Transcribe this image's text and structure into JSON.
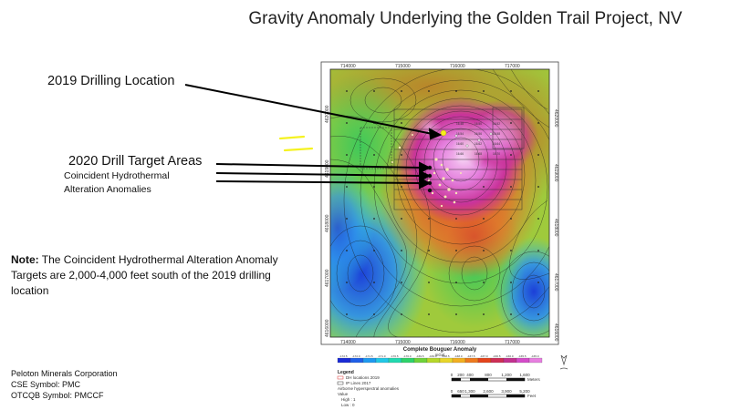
{
  "title": "Gravity Anomaly Underlying the Golden Trail Project, NV",
  "labels": {
    "drill_2019": "2019 Drilling Location",
    "drill_2020": "2020 Drill Target Areas",
    "coincident_1": "Coincident Hydrothermal",
    "coincident_2": "Alteration Anomalies"
  },
  "note": {
    "prefix": "Note:",
    "text": "The Coincident Hydrothermal Alteration Anomaly Targets are 2,000-4,000 feet south of the 2019 drilling location"
  },
  "company": {
    "name": "Peloton Minerals Corporation",
    "cse": "CSE Symbol: PMC",
    "otcqb": "OTCQB Symbol: PMCCF"
  },
  "map": {
    "easting_top": [
      "714000",
      "715000",
      "716000",
      "717000"
    ],
    "easting_bottom": [
      "714000",
      "715000",
      "716000",
      "717000"
    ],
    "northing_left": [
      "4620000",
      "4619000",
      "4618000",
      "4617000",
      "4616000"
    ],
    "northing_right": [
      "4620000",
      "4619000",
      "4618000",
      "4617000",
      "4616000"
    ],
    "colorbar_title": "Complete Bouguer Anomaly",
    "colorbar_unit": "mGal",
    "colorbar_colors": [
      "#1a2bd6",
      "#1f5fe8",
      "#1e9af0",
      "#22c8e6",
      "#22d9b0",
      "#2ed36a",
      "#6fd33a",
      "#b6d82a",
      "#e8d62a",
      "#f2b021",
      "#ee7a1e",
      "#e4441c",
      "#cf2e55",
      "#c2318f",
      "#d44bc9",
      "#e77fe0"
    ],
    "colorbar_ticks": [
      "-172.5",
      "-172.0",
      "-171.5",
      "-171.0",
      "-170.5",
      "-170.0",
      "-169.5",
      "-169.0",
      "-168.5",
      "-168.0",
      "-167.5",
      "-167.0",
      "-166.5",
      "-166.0",
      "-165.5",
      "-165.0"
    ],
    "legend_title": "Legend",
    "legend_items": [
      "DH locations 2019",
      "IP Lines 2017",
      "Airborne hyperspectral anomalies"
    ],
    "legend_value": "Value",
    "legend_high": "High : 1",
    "legend_low": "Low : 0",
    "scale_m": [
      "0",
      "200",
      "400",
      "800",
      "1,200",
      "1,600"
    ],
    "scale_m_unit": "Meters",
    "scale_ft": [
      "0",
      "650",
      "1,300",
      "2,600",
      "3,900",
      "5,200"
    ],
    "scale_ft_unit": "Feet",
    "block_values": [
      "16.48",
      "16.50",
      "16.52",
      "16.54",
      "16.56",
      "16.58",
      "16.60",
      "16.62",
      "16.64",
      "16.66",
      "16.68",
      "16.70"
    ]
  },
  "annotation_colors": {
    "arrow": "#000000",
    "highlight": "#f5f221",
    "drill_point": "#f5ef1a"
  }
}
